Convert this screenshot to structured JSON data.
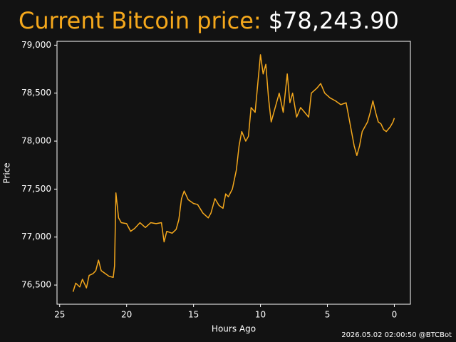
{
  "chart_data": {
    "type": "line",
    "title": "Current Bitcoin price:",
    "current_price": "$78,243.90",
    "xlabel": "Hours Ago",
    "ylabel": "Price",
    "footer": "2026.05.02 02:00:50 @BTCBot",
    "color": "#f5a81c",
    "grid": false,
    "xlim": [
      25.2,
      -1.2
    ],
    "ylim": [
      76300,
      79040
    ],
    "xticks": [
      25,
      20,
      15,
      10,
      5,
      0
    ],
    "yticks": [
      {
        "value": 76500,
        "label": "76,500"
      },
      {
        "value": 77000,
        "label": "77,000"
      },
      {
        "value": 77500,
        "label": "77,500"
      },
      {
        "value": 78000,
        "label": "78,000"
      },
      {
        "value": 78500,
        "label": "78,500"
      },
      {
        "value": 79000,
        "label": "79,000"
      }
    ],
    "x": [
      24.0,
      23.8,
      23.5,
      23.3,
      23.0,
      22.8,
      22.5,
      22.3,
      22.1,
      21.9,
      21.6,
      21.3,
      21.0,
      20.9,
      20.8,
      20.6,
      20.4,
      20.0,
      19.7,
      19.4,
      19.0,
      18.6,
      18.2,
      17.8,
      17.4,
      17.2,
      17.0,
      16.6,
      16.3,
      16.1,
      15.9,
      15.7,
      15.4,
      15.0,
      14.7,
      14.3,
      13.9,
      13.7,
      13.4,
      13.1,
      12.8,
      12.6,
      12.4,
      12.1,
      11.8,
      11.6,
      11.4,
      11.1,
      10.9,
      10.7,
      10.4,
      10.2,
      10.0,
      9.8,
      9.6,
      9.4,
      9.2,
      9.0,
      8.6,
      8.3,
      8.0,
      7.8,
      7.6,
      7.3,
      7.0,
      6.7,
      6.4,
      6.2,
      5.8,
      5.5,
      5.2,
      4.8,
      4.4,
      4.0,
      3.6,
      3.4,
      3.2,
      3.0,
      2.8,
      2.6,
      2.4,
      2.2,
      2.0,
      1.8,
      1.6,
      1.4,
      1.2,
      1.0,
      0.8,
      0.6,
      0.3,
      0.1,
      0.0
    ],
    "values": [
      76430,
      76520,
      76480,
      76560,
      76470,
      76600,
      76620,
      76650,
      76760,
      76650,
      76620,
      76590,
      76580,
      76700,
      77460,
      77200,
      77150,
      77140,
      77060,
      77090,
      77150,
      77100,
      77150,
      77140,
      77150,
      76950,
      77060,
      77040,
      77080,
      77180,
      77400,
      77480,
      77390,
      77350,
      77340,
      77250,
      77200,
      77250,
      77400,
      77330,
      77300,
      77450,
      77420,
      77500,
      77700,
      77950,
      78100,
      78000,
      78050,
      78350,
      78300,
      78600,
      78900,
      78700,
      78800,
      78450,
      78200,
      78300,
      78500,
      78300,
      78700,
      78400,
      78500,
      78250,
      78350,
      78300,
      78250,
      78500,
      78550,
      78600,
      78500,
      78450,
      78420,
      78380,
      78400,
      78250,
      78100,
      77950,
      77850,
      77950,
      78100,
      78150,
      78200,
      78300,
      78420,
      78300,
      78200,
      78180,
      78120,
      78100,
      78150,
      78200,
      78240
    ]
  }
}
